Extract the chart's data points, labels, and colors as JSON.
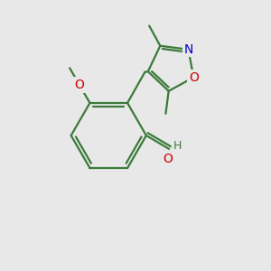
{
  "background_color": "#e8e8e8",
  "bond_color": "#3a7a3a",
  "o_color": "#cc0000",
  "n_color": "#0000cc",
  "figsize": [
    3.0,
    3.0
  ],
  "dpi": 100,
  "xlim": [
    0,
    10
  ],
  "ylim": [
    0,
    10
  ]
}
